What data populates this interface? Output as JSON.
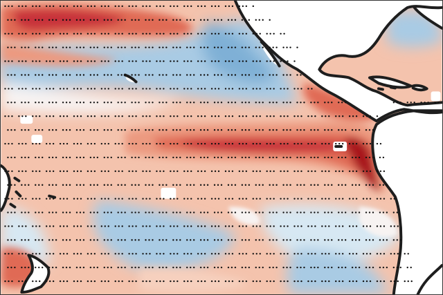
{
  "map": {
    "colors": {
      "ocean_base": "#f4c3ad",
      "warm_light": "#f6d0be",
      "warm": "#ec9a80",
      "warm_strong": "#e06a55",
      "warm_dark": "#c8303a",
      "warm_darkest": "#a8141f",
      "cool_light": "#d7e8f3",
      "cool": "#a9cbe4",
      "cool_strong": "#7fb0d6",
      "neutral": "#f7f3f2",
      "land": "#ffffff",
      "coast": "#1e1e1e",
      "stipple": "#111111"
    },
    "legend": null
  }
}
